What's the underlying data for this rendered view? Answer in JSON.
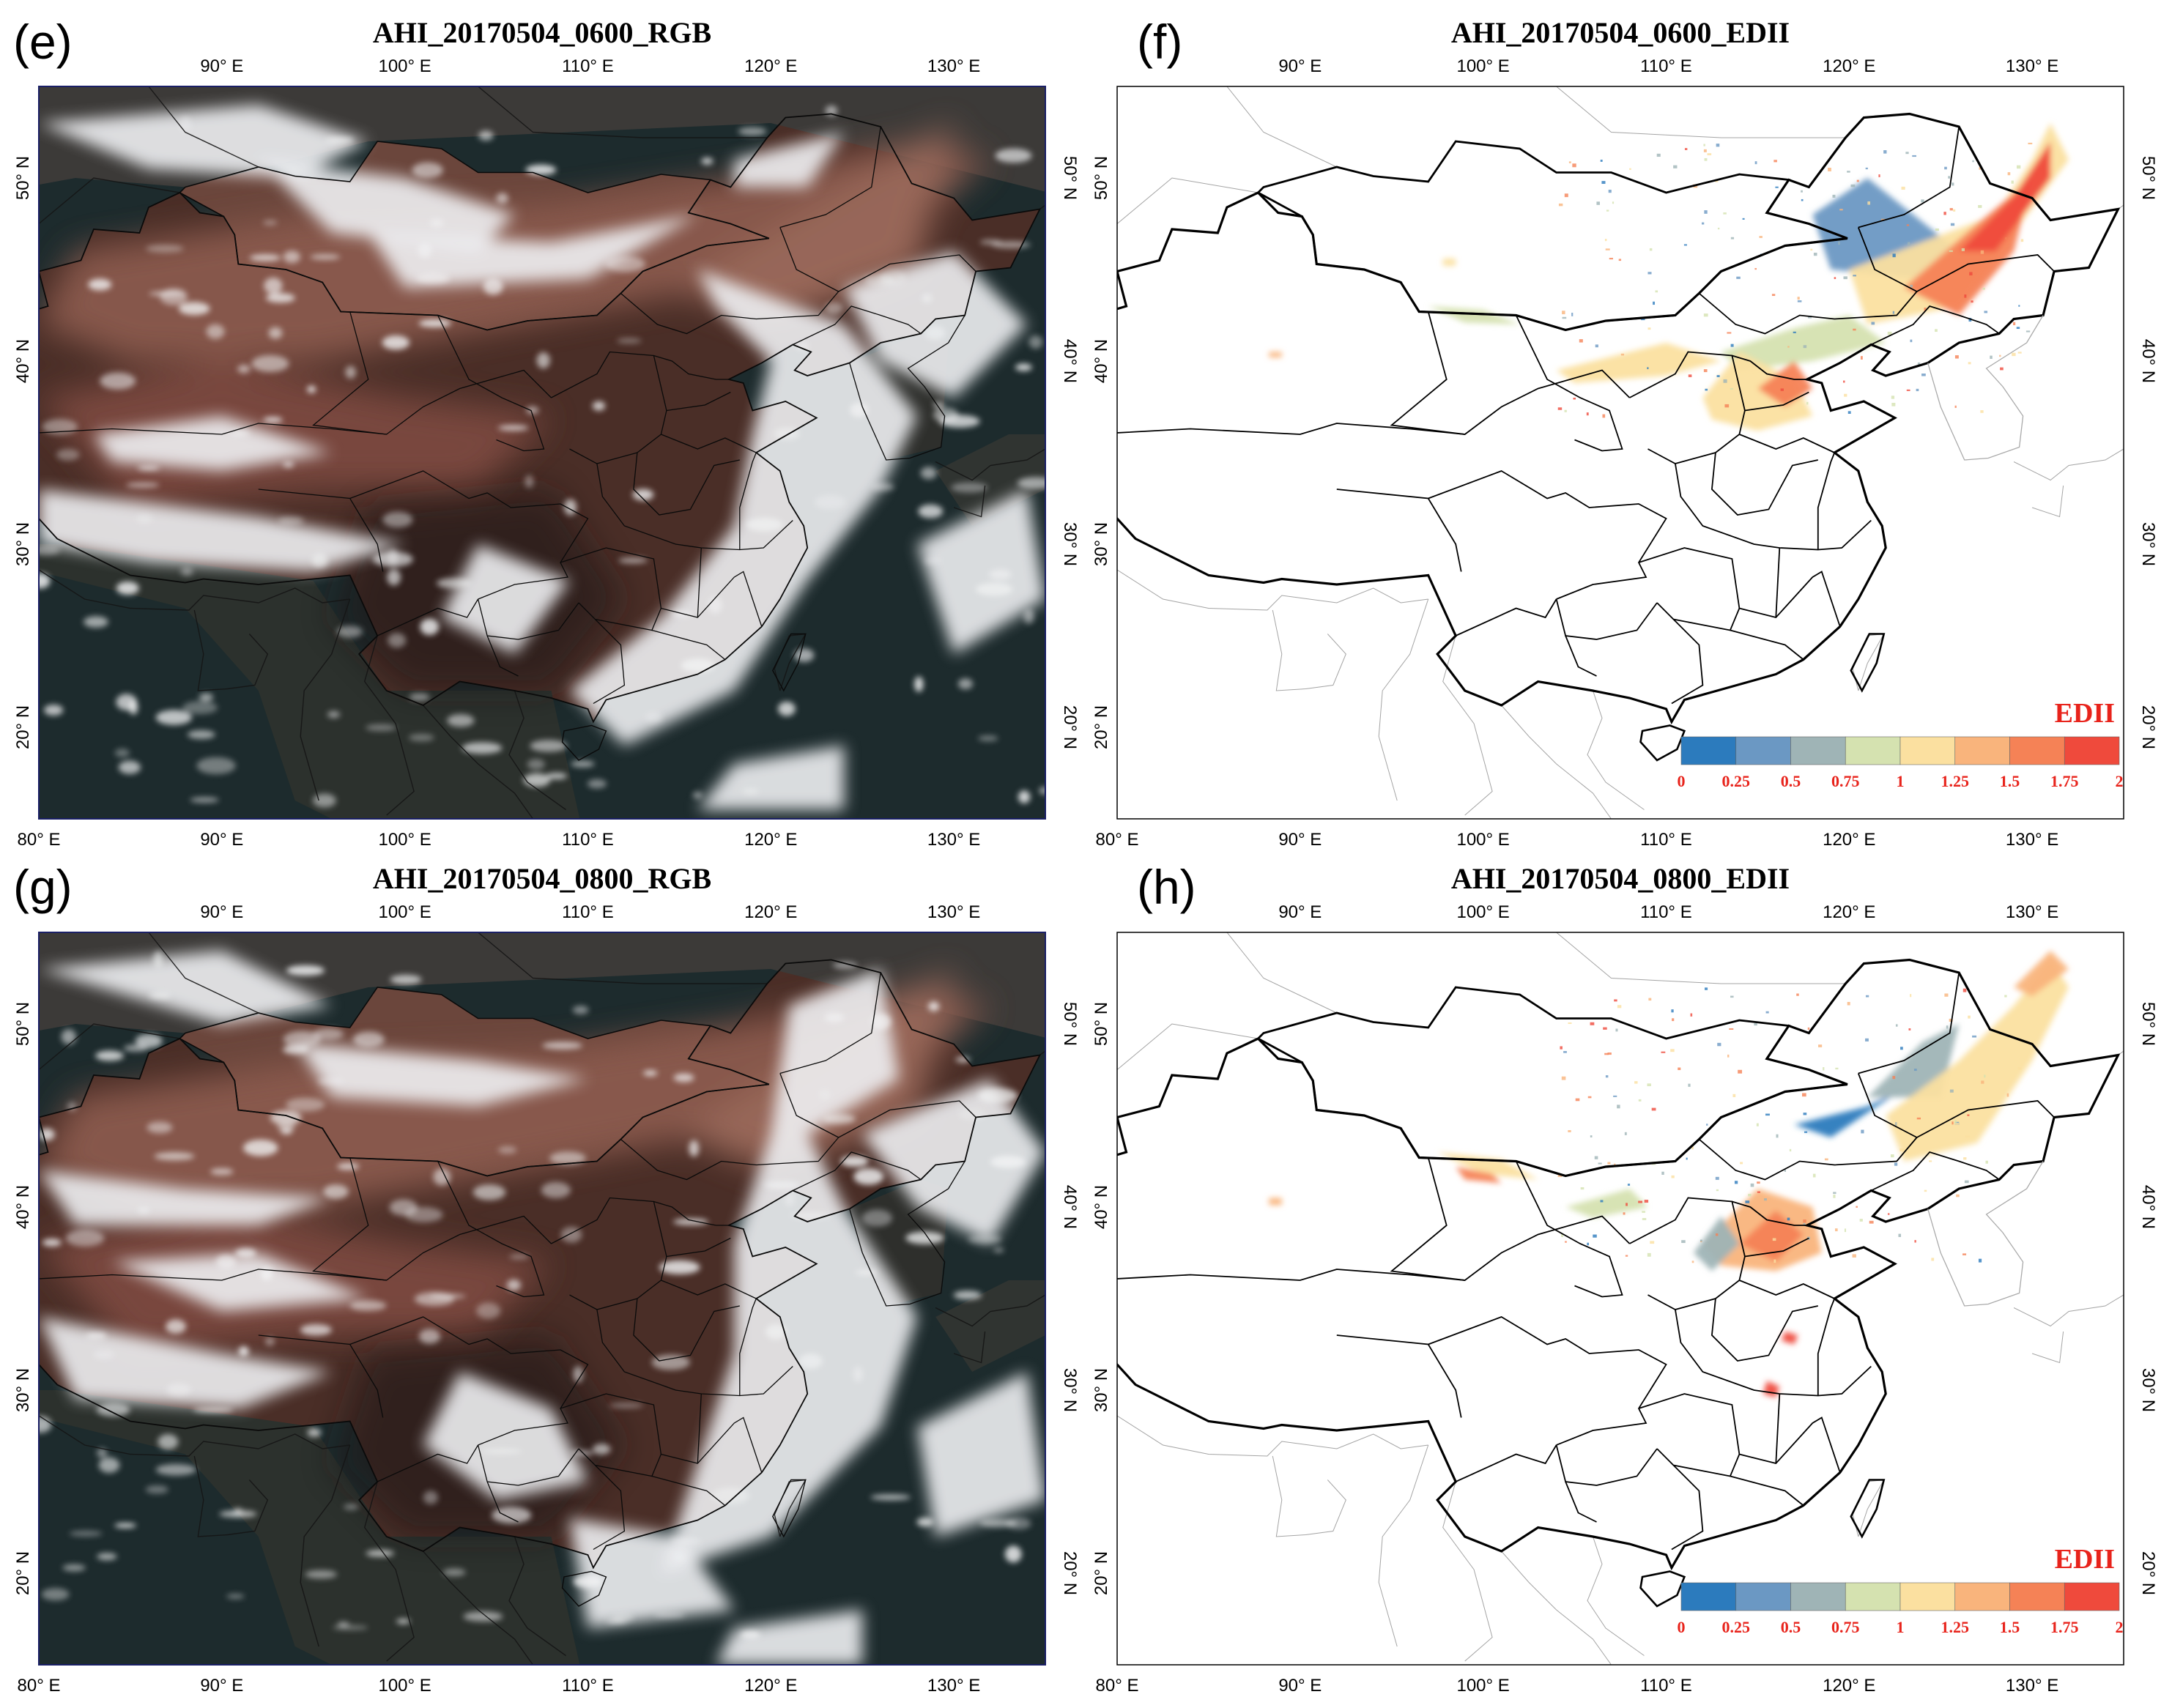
{
  "panels": [
    {
      "id": "e",
      "letter": "(e)",
      "title": "AHI_20170504_0600_RGB",
      "kind": "rgb",
      "column": 0,
      "row": 0
    },
    {
      "id": "f",
      "letter": "(f)",
      "title": "AHI_20170504_0600_EDII",
      "kind": "edii",
      "column": 1,
      "row": 0
    },
    {
      "id": "g",
      "letter": "(g)",
      "title": "AHI_20170504_0800_RGB",
      "kind": "rgb",
      "column": 0,
      "row": 1
    },
    {
      "id": "h",
      "letter": "(h)",
      "title": "AHI_20170504_0800_EDII",
      "kind": "edii",
      "column": 1,
      "row": 1
    }
  ],
  "axes": {
    "lon_range": [
      80,
      135
    ],
    "lat_range": [
      15,
      55
    ],
    "top_lon_ticks": [
      "90° E",
      "100° E",
      "110° E",
      "120° E",
      "130° E"
    ],
    "bottom_lon_ticks": [
      "80° E",
      "90° E",
      "100° E",
      "110° E",
      "120° E",
      "130° E"
    ],
    "lat_ticks": [
      "20° N",
      "30° N",
      "40° N",
      "50° N"
    ]
  },
  "colorbar": {
    "title": "EDII",
    "ticks": [
      "0",
      "0.25",
      "0.5",
      "0.75",
      "1",
      "1.25",
      "1.5",
      "1.75",
      "2"
    ],
    "colors": [
      "#2c7bbd",
      "#6b98c3",
      "#9fb4b6",
      "#d5e2b0",
      "#fbe0a0",
      "#f9b47c",
      "#f58256",
      "#ef4a3c"
    ]
  },
  "colors": {
    "sea": "#1d2b2d",
    "land": "#4a2e27",
    "dust": "#8a5a4e",
    "cloud": "#eef0f2",
    "border": "#000000"
  }
}
